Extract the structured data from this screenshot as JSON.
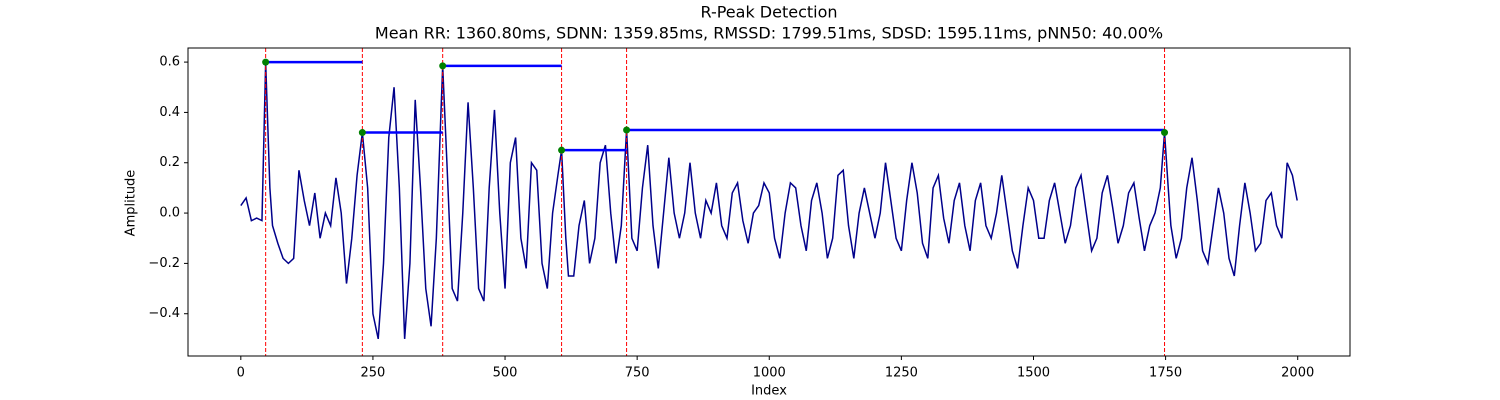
{
  "chart_data": {
    "type": "line",
    "title": "R-Peak Detection",
    "subtitle": "Mean RR: 1360.80ms, SDNN: 1359.85ms, RMSSD: 1799.51ms, SDSD: 1595.11ms, pNN50: 40.00%",
    "x_label": "Index",
    "y_label": "Amplitude",
    "xlim": [
      -99.95,
      2098.95
    ],
    "ylim": [
      -0.568,
      0.656
    ],
    "xticks": [
      0,
      250,
      500,
      750,
      1000,
      1250,
      1500,
      1750,
      2000
    ],
    "yticks": [
      {
        "value": -0.4,
        "label": "−0.4"
      },
      {
        "value": -0.2,
        "label": "−0.2"
      },
      {
        "value": 0,
        "label": "0.0"
      },
      0.2,
      0.4,
      0.6
    ],
    "signal": {
      "color": "#00008b",
      "x": [
        0,
        10,
        20,
        30,
        40,
        47,
        55,
        60,
        70,
        80,
        90,
        100,
        110,
        120,
        130,
        140,
        150,
        160,
        170,
        180,
        190,
        200,
        210,
        220,
        230,
        240,
        250,
        260,
        270,
        280,
        290,
        300,
        310,
        320,
        330,
        340,
        350,
        360,
        370,
        382,
        390,
        400,
        410,
        420,
        430,
        440,
        450,
        460,
        470,
        480,
        490,
        500,
        510,
        520,
        530,
        540,
        550,
        560,
        570,
        580,
        590,
        600,
        607,
        615,
        620,
        630,
        640,
        650,
        660,
        670,
        680,
        690,
        700,
        710,
        720,
        730,
        740,
        750,
        760,
        770,
        780,
        790,
        800,
        810,
        820,
        830,
        840,
        850,
        860,
        870,
        880,
        890,
        900,
        910,
        920,
        930,
        940,
        950,
        960,
        970,
        980,
        990,
        1000,
        1010,
        1020,
        1030,
        1040,
        1050,
        1060,
        1070,
        1080,
        1090,
        1100,
        1110,
        1120,
        1130,
        1140,
        1150,
        1160,
        1170,
        1180,
        1190,
        1200,
        1210,
        1220,
        1230,
        1240,
        1250,
        1260,
        1270,
        1280,
        1290,
        1300,
        1310,
        1320,
        1330,
        1340,
        1350,
        1360,
        1370,
        1380,
        1390,
        1400,
        1410,
        1420,
        1430,
        1440,
        1450,
        1460,
        1470,
        1480,
        1490,
        1500,
        1510,
        1520,
        1530,
        1540,
        1550,
        1560,
        1570,
        1580,
        1590,
        1600,
        1610,
        1620,
        1630,
        1640,
        1650,
        1660,
        1670,
        1680,
        1690,
        1700,
        1710,
        1720,
        1730,
        1740,
        1748,
        1755,
        1760,
        1770,
        1780,
        1790,
        1800,
        1810,
        1820,
        1830,
        1840,
        1850,
        1860,
        1870,
        1880,
        1890,
        1900,
        1910,
        1920,
        1930,
        1940,
        1950,
        1960,
        1970,
        1980,
        1990,
        1999
      ],
      "values": [
        0.03,
        0.06,
        -0.03,
        -0.02,
        -0.03,
        0.6,
        0.1,
        -0.05,
        -0.12,
        -0.18,
        -0.2,
        -0.18,
        0.17,
        0.05,
        -0.05,
        0.08,
        -0.1,
        0,
        -0.05,
        0.14,
        0,
        -0.28,
        -0.1,
        0.15,
        0.32,
        0.1,
        -0.4,
        -0.5,
        -0.2,
        0.3,
        0.5,
        0.1,
        -0.5,
        -0.2,
        0.45,
        0.1,
        -0.3,
        -0.45,
        -0.1,
        0.585,
        0.2,
        -0.3,
        -0.35,
        0,
        0.44,
        0.1,
        -0.3,
        -0.35,
        0.1,
        0.41,
        0,
        -0.3,
        0.2,
        0.3,
        -0.1,
        -0.22,
        0.2,
        0.17,
        -0.2,
        -0.3,
        0,
        0.15,
        0.25,
        -0.1,
        -0.25,
        -0.25,
        -0.05,
        0.05,
        -0.2,
        -0.1,
        0.2,
        0.27,
        0,
        -0.2,
        -0.05,
        0.33,
        -0.1,
        -0.15,
        0.1,
        0.27,
        -0.05,
        -0.22,
        0,
        0.22,
        0,
        -0.1,
        0,
        0.2,
        0,
        -0.1,
        0.05,
        0,
        0.12,
        -0.05,
        -0.1,
        0.08,
        0.12,
        -0.03,
        -0.12,
        0,
        0.03,
        0.12,
        0.08,
        -0.1,
        -0.18,
        0,
        0.12,
        0.1,
        -0.05,
        -0.15,
        0.05,
        0.12,
        0,
        -0.18,
        -0.1,
        0.15,
        0.17,
        -0.05,
        -0.18,
        0,
        0.1,
        0,
        -0.1,
        0,
        0.2,
        0.05,
        -0.1,
        -0.15,
        0.05,
        0.2,
        0.08,
        -0.12,
        -0.18,
        0.1,
        0.15,
        -0.02,
        -0.12,
        0.05,
        0.12,
        -0.05,
        -0.15,
        0.05,
        0.12,
        -0.05,
        -0.1,
        0,
        0.15,
        0,
        -0.15,
        -0.22,
        -0.05,
        0.1,
        0.05,
        -0.1,
        -0.1,
        0.05,
        0.12,
        0,
        -0.12,
        -0.05,
        0.1,
        0.15,
        0,
        -0.15,
        -0.1,
        0.08,
        0.15,
        0.02,
        -0.12,
        -0.05,
        0.08,
        0.12,
        -0.02,
        -0.15,
        -0.05,
        0,
        0.1,
        0.32,
        0.1,
        -0.05,
        -0.18,
        -0.1,
        0.1,
        0.22,
        0.05,
        -0.15,
        -0.2,
        -0.05,
        0.1,
        0,
        -0.18,
        -0.25,
        -0.05,
        0.12,
        0,
        -0.15,
        -0.12,
        0.05,
        0.08,
        -0.05,
        -0.1,
        0.2,
        0.15,
        0.05
      ]
    },
    "peaks": {
      "color": "#008000",
      "x": [
        47,
        230,
        382,
        607,
        730,
        1748
      ],
      "values": [
        0.6,
        0.32,
        0.585,
        0.25,
        0.33,
        0.32
      ]
    },
    "peak_line_color": "#ff0000",
    "interval_color": "#0000ff"
  }
}
